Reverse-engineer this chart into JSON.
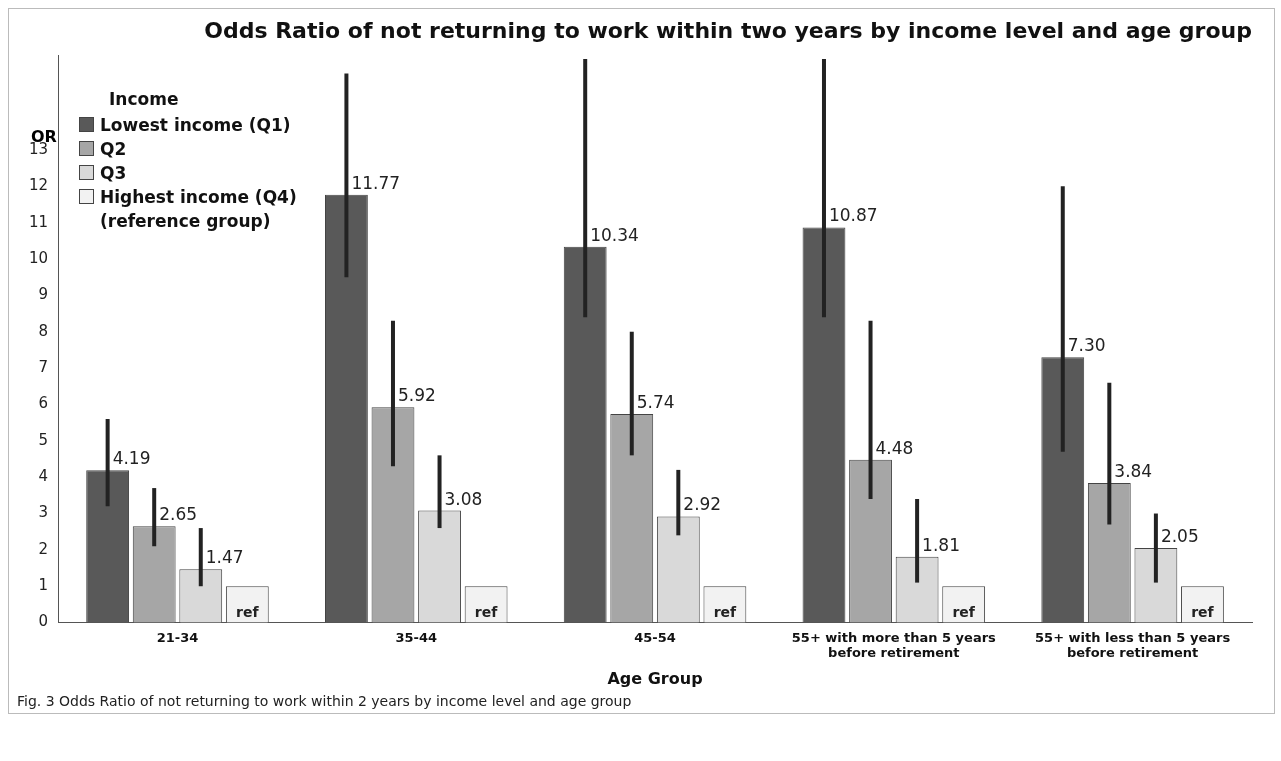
{
  "chart_data": {
    "type": "bar",
    "title": "Odds Ratio of not returning to work within two years by income level and age group",
    "ylabel": "OR",
    "xlabel": "Age Group",
    "legend_title": "Income",
    "legend": "top left",
    "grid": false,
    "categories": [
      "21-34",
      "35-44",
      "45-54",
      "55+ with more than 5 years before retirement",
      "55+ with less than 5 years before retirement"
    ],
    "ylim": [
      0,
      15.6
    ],
    "yticks": [
      0,
      1,
      2,
      3,
      4,
      5,
      6,
      7,
      8,
      9,
      10,
      11,
      12,
      13
    ],
    "series": [
      {
        "name": "Lowest income (Q1)",
        "color": "#595959",
        "values": [
          4.19,
          11.77,
          10.34,
          10.87,
          7.3
        ],
        "value_labels": [
          "4.19",
          "11.77",
          "10.34",
          "10.87",
          "7.30"
        ],
        "errors": [
          [
            3.2,
            5.6
          ],
          [
            9.5,
            15.1
          ],
          [
            8.4,
            15.5
          ],
          [
            8.4,
            15.5
          ],
          [
            4.7,
            12.0
          ]
        ]
      },
      {
        "name": "Q2",
        "color": "#a6a6a6",
        "values": [
          2.65,
          5.92,
          5.74,
          4.48,
          3.84
        ],
        "value_labels": [
          "2.65",
          "5.92",
          "5.74",
          "4.48",
          "3.84"
        ],
        "errors": [
          [
            2.1,
            3.7
          ],
          [
            4.3,
            8.3
          ],
          [
            4.6,
            8.0
          ],
          [
            3.4,
            8.3
          ],
          [
            2.7,
            6.6
          ]
        ]
      },
      {
        "name": "Q3",
        "color": "#d9d9d9",
        "values": [
          1.47,
          3.08,
          2.92,
          1.81,
          2.05
        ],
        "value_labels": [
          "1.47",
          "3.08",
          "2.92",
          "1.81",
          "2.05"
        ],
        "errors": [
          [
            1.0,
            2.6
          ],
          [
            2.6,
            4.6
          ],
          [
            2.4,
            4.2
          ],
          [
            1.1,
            3.4
          ],
          [
            1.1,
            3.0
          ]
        ]
      },
      {
        "name": "Highest income (Q4) (reference group)",
        "color": "#f2f2f2",
        "values": [
          1,
          1,
          1,
          1,
          1
        ],
        "value_labels": [
          "ref",
          "ref",
          "ref",
          "ref",
          "ref"
        ]
      }
    ],
    "annotations": [
      "Fig. 3 Odds Ratio of not returning to work within 2 years by income level and age group"
    ]
  }
}
